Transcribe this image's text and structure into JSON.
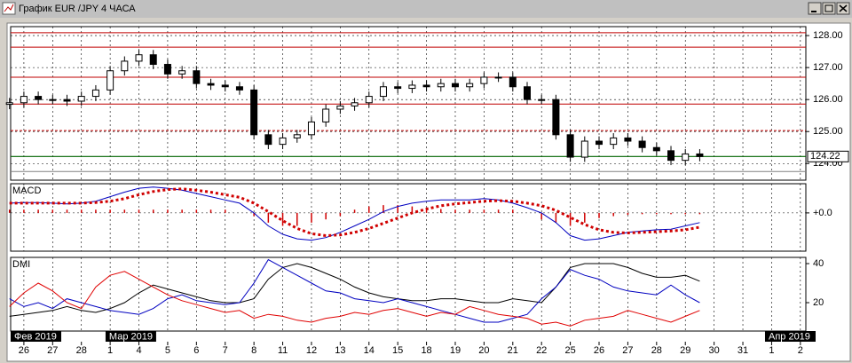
{
  "window": {
    "title": "График EUR /JPY  4 ЧАСА"
  },
  "chart_data": [
    {
      "type": "candlestick",
      "x": [
        -0.5,
        0,
        0.5,
        1,
        1.5,
        2,
        2.5,
        3,
        3.5,
        4,
        4.5,
        5,
        5.5,
        6,
        6.5,
        7,
        7.5,
        8,
        8.5,
        9,
        9.5,
        10,
        10.5,
        11,
        11.5,
        12,
        12.5,
        13,
        13.5,
        14,
        14.5,
        15,
        15.5,
        16,
        16.5,
        17,
        17.5,
        18,
        18.5,
        19,
        19.5,
        20,
        20.5,
        21,
        21.5,
        22,
        22.5,
        23,
        23.5
      ],
      "open": [
        125.85,
        125.9,
        126.1,
        126.0,
        126.0,
        125.95,
        126.1,
        126.3,
        126.9,
        127.2,
        127.4,
        127.1,
        126.8,
        126.9,
        126.5,
        126.45,
        126.4,
        126.3,
        124.9,
        124.6,
        124.8,
        124.9,
        125.3,
        125.7,
        125.8,
        125.9,
        126.1,
        126.4,
        126.35,
        126.45,
        126.4,
        126.5,
        126.4,
        126.5,
        126.7,
        126.7,
        126.4,
        126.0,
        126.0,
        124.9,
        124.2,
        124.7,
        124.6,
        124.8,
        124.7,
        124.5,
        124.4,
        124.1,
        124.3
      ],
      "high": [
        126.05,
        126.25,
        126.25,
        126.15,
        126.15,
        126.25,
        126.45,
        127.05,
        127.35,
        127.55,
        127.55,
        127.25,
        127.05,
        127.05,
        126.65,
        126.6,
        126.55,
        126.45,
        125.05,
        124.95,
        125.05,
        125.45,
        125.85,
        125.95,
        126.05,
        126.25,
        126.55,
        126.55,
        126.6,
        126.6,
        126.65,
        126.65,
        126.65,
        126.85,
        126.85,
        126.85,
        126.55,
        126.15,
        126.15,
        125.05,
        124.85,
        124.85,
        124.95,
        124.95,
        124.85,
        124.65,
        124.55,
        124.45,
        124.45
      ],
      "low": [
        125.7,
        125.75,
        125.85,
        125.85,
        125.8,
        125.8,
        125.95,
        126.15,
        126.75,
        127.05,
        126.95,
        126.65,
        126.65,
        126.35,
        126.3,
        126.25,
        126.15,
        124.75,
        124.45,
        124.45,
        124.65,
        124.75,
        125.15,
        125.55,
        125.65,
        125.75,
        125.95,
        126.2,
        126.2,
        126.25,
        126.25,
        126.25,
        126.25,
        126.35,
        126.55,
        126.25,
        125.85,
        125.85,
        124.75,
        124.05,
        124.05,
        124.45,
        124.45,
        124.55,
        124.35,
        124.25,
        123.95,
        123.95,
        124.07
      ],
      "close": [
        125.9,
        126.1,
        126.0,
        126.0,
        125.95,
        126.1,
        126.3,
        126.9,
        127.2,
        127.4,
        127.1,
        126.8,
        126.9,
        126.5,
        126.45,
        126.4,
        126.3,
        124.9,
        124.6,
        124.8,
        124.9,
        125.3,
        125.7,
        125.8,
        125.9,
        126.1,
        126.4,
        126.35,
        126.45,
        126.4,
        126.5,
        126.4,
        126.5,
        126.7,
        126.7,
        126.4,
        126.0,
        126.0,
        124.9,
        124.2,
        124.7,
        124.6,
        124.8,
        124.7,
        124.5,
        124.4,
        124.1,
        124.3,
        124.22
      ],
      "ylim": [
        123.48,
        128.28
      ],
      "yticks": [
        {
          "value": 124,
          "label": "124.00"
        },
        {
          "value": 125,
          "label": "125.00"
        },
        {
          "value": 126,
          "label": "126.00"
        },
        {
          "value": 127,
          "label": "127.00"
        },
        {
          "value": 128,
          "label": "128.00"
        }
      ],
      "levels": [
        {
          "value": 128.09,
          "color": "#c00000",
          "dash": false
        },
        {
          "value": 127.64,
          "color": "#c00000",
          "dash": false
        },
        {
          "value": 126.7,
          "color": "#c00000",
          "dash": false
        },
        {
          "value": 125.86,
          "color": "#c00000",
          "dash": false
        },
        {
          "value": 125.03,
          "color": "#c00000",
          "dash": true
        },
        {
          "value": 123.75,
          "color": "#808080",
          "dash": false
        }
      ],
      "last_price": {
        "value": 124.22,
        "label": "124.22",
        "color": "#006400"
      },
      "xlim": [
        -0.46,
        27.19
      ],
      "grid": true
    },
    {
      "type": "macd",
      "title": "MACD",
      "x": [
        -0.5,
        0,
        0.5,
        1,
        1.5,
        2,
        2.5,
        3,
        3.5,
        4,
        4.5,
        5,
        5.5,
        6,
        6.5,
        7,
        7.5,
        8,
        8.5,
        9,
        9.5,
        10,
        10.5,
        11,
        11.5,
        12,
        12.5,
        13,
        13.5,
        14,
        14.5,
        15,
        15.5,
        16,
        16.5,
        17,
        17.5,
        18,
        18.5,
        19,
        19.5,
        20,
        20.5,
        21,
        21.5,
        22,
        22.5,
        23,
        23.5
      ],
      "series": [
        {
          "style": "histogram",
          "color": "#d00000",
          "values": [
            0.05,
            0.05,
            0.05,
            0.05,
            0.05,
            0.05,
            0.05,
            0.05,
            0.05,
            0.05,
            0.05,
            0.05,
            0.05,
            0.05,
            0.05,
            0.05,
            0.0,
            -0.05,
            -0.15,
            -0.2,
            -0.2,
            -0.15,
            -0.1,
            -0.05,
            0.05,
            0.1,
            0.12,
            0.12,
            0.1,
            0.08,
            0.06,
            0.05,
            0.05,
            0.05,
            0.05,
            0.05,
            0.0,
            -0.1,
            -0.15,
            -0.2,
            -0.15,
            -0.08,
            -0.05,
            -0.03,
            -0.02,
            -0.02,
            -0.02,
            -0.02,
            -0.02
          ]
        },
        {
          "style": "line",
          "color": "#0000c0",
          "values": [
            0.15,
            0.16,
            0.16,
            0.15,
            0.14,
            0.15,
            0.18,
            0.25,
            0.32,
            0.38,
            0.4,
            0.38,
            0.35,
            0.3,
            0.25,
            0.2,
            0.15,
            0.0,
            -0.2,
            -0.33,
            -0.4,
            -0.42,
            -0.38,
            -0.3,
            -0.2,
            -0.1,
            0.02,
            0.1,
            0.15,
            0.18,
            0.2,
            0.2,
            0.2,
            0.22,
            0.2,
            0.15,
            0.08,
            0.0,
            -0.15,
            -0.35,
            -0.42,
            -0.4,
            -0.35,
            -0.3,
            -0.28,
            -0.26,
            -0.25,
            -0.2,
            -0.15
          ]
        },
        {
          "style": "dotted",
          "color": "#d00000",
          "values": [
            0.15,
            0.15,
            0.15,
            0.15,
            0.15,
            0.15,
            0.16,
            0.18,
            0.22,
            0.28,
            0.33,
            0.36,
            0.37,
            0.35,
            0.32,
            0.28,
            0.24,
            0.15,
            0.02,
            -0.12,
            -0.24,
            -0.32,
            -0.35,
            -0.34,
            -0.3,
            -0.24,
            -0.16,
            -0.08,
            0.0,
            0.06,
            0.11,
            0.14,
            0.16,
            0.18,
            0.19,
            0.18,
            0.15,
            0.11,
            0.04,
            -0.07,
            -0.18,
            -0.26,
            -0.3,
            -0.31,
            -0.3,
            -0.29,
            -0.28,
            -0.26,
            -0.22
          ]
        }
      ],
      "ylim": [
        -0.59,
        0.45
      ],
      "yticks": [
        {
          "value": 0,
          "label": "+0.0"
        }
      ],
      "xlim": [
        -0.46,
        27.19
      ]
    },
    {
      "type": "dmi",
      "title": "DMI",
      "x": [
        -0.5,
        0,
        0.5,
        1,
        1.5,
        2,
        2.5,
        3,
        3.5,
        4,
        4.5,
        5,
        5.5,
        6,
        6.5,
        7,
        7.5,
        8,
        8.5,
        9,
        9.5,
        10,
        10.5,
        11,
        11.5,
        12,
        12.5,
        13,
        13.5,
        14,
        14.5,
        15,
        15.5,
        16,
        16.5,
        17,
        17.5,
        18,
        18.5,
        19,
        19.5,
        20,
        20.5,
        21,
        21.5,
        22,
        22.5,
        23,
        23.5
      ],
      "series": [
        {
          "style": "line",
          "color": "#000000",
          "values": [
            13,
            14,
            15,
            16,
            18,
            16,
            15,
            17,
            20,
            25,
            29,
            27,
            25,
            23,
            21,
            20,
            20,
            22,
            32,
            38,
            40,
            38,
            35,
            32,
            28,
            25,
            23,
            22,
            21,
            21,
            22,
            22,
            21,
            20,
            20,
            22,
            21,
            20,
            28,
            38,
            40,
            40,
            40,
            38,
            35,
            33,
            33,
            34,
            31
          ]
        },
        {
          "style": "line",
          "color": "#0000c0",
          "values": [
            22,
            18,
            20,
            17,
            22,
            20,
            18,
            16,
            15,
            14,
            17,
            22,
            24,
            21,
            20,
            19,
            20,
            30,
            42,
            38,
            34,
            30,
            26,
            25,
            22,
            21,
            20,
            22,
            20,
            18,
            16,
            14,
            12,
            10,
            10,
            12,
            14,
            22,
            28,
            37,
            34,
            32,
            28,
            26,
            25,
            24,
            29,
            24,
            20
          ]
        },
        {
          "style": "line",
          "color": "#e00000",
          "values": [
            18,
            25,
            30,
            26,
            20,
            17,
            28,
            34,
            36,
            32,
            28,
            24,
            21,
            19,
            17,
            15,
            16,
            12,
            14,
            13,
            11,
            10,
            12,
            13,
            15,
            14,
            16,
            17,
            15,
            13,
            15,
            14,
            18,
            16,
            14,
            13,
            12,
            9,
            10,
            8,
            11,
            12,
            13,
            16,
            14,
            12,
            10,
            13,
            16
          ]
        }
      ],
      "ylim": [
        5.45,
        43.18
      ],
      "yticks": [
        20,
        40
      ],
      "xlim": [
        -0.46,
        27.19
      ],
      "xticks": [
        {
          "value": 0,
          "label": "26"
        },
        {
          "value": 1,
          "label": "27"
        },
        {
          "value": 2,
          "label": "28"
        },
        {
          "value": 3,
          "label": "1"
        },
        {
          "value": 4,
          "label": "4"
        },
        {
          "value": 5,
          "label": "5"
        },
        {
          "value": 6,
          "label": "6"
        },
        {
          "value": 7,
          "label": "7"
        },
        {
          "value": 8,
          "label": "8"
        },
        {
          "value": 9,
          "label": "11"
        },
        {
          "value": 10,
          "label": "12"
        },
        {
          "value": 11,
          "label": "13"
        },
        {
          "value": 12,
          "label": "14"
        },
        {
          "value": 13,
          "label": "15"
        },
        {
          "value": 14,
          "label": "18"
        },
        {
          "value": 15,
          "label": "19"
        },
        {
          "value": 16,
          "label": "20"
        },
        {
          "value": 17,
          "label": "21"
        },
        {
          "value": 18,
          "label": "22"
        },
        {
          "value": 19,
          "label": "25"
        },
        {
          "value": 20,
          "label": "26"
        },
        {
          "value": 21,
          "label": "27"
        },
        {
          "value": 22,
          "label": "28"
        },
        {
          "value": 23,
          "label": "29"
        },
        {
          "value": 24,
          "label": "30"
        },
        {
          "value": 25,
          "label": "31"
        },
        {
          "value": 26,
          "label": "1"
        },
        {
          "value": 27,
          "label": "2"
        }
      ],
      "month_ticks": [
        {
          "value": -0.46,
          "label": "Фев 2019"
        },
        {
          "value": 2.84,
          "label": "Мар 2019"
        },
        {
          "value": 25.77,
          "label": "Апр 2019"
        }
      ]
    }
  ]
}
